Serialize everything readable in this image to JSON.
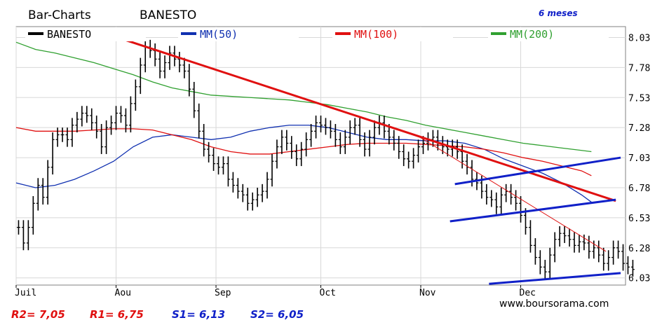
{
  "header": {
    "chart_title": "Bar-Charts",
    "symbol": "BANESTO",
    "period": "6 meses",
    "credit": "www.boursorama.com"
  },
  "levels": [
    {
      "label": "R2= 7,05",
      "color": "#e01010"
    },
    {
      "label": "R1= 6,75",
      "color": "#e01010"
    },
    {
      "label": "S1= 6,13",
      "color": "#1020c8"
    },
    {
      "label": "S2= 6,05",
      "color": "#1020c8"
    }
  ],
  "chart_data": {
    "type": "bar",
    "style": "ohlc-bar-chart",
    "title": "Bar-Charts BANESTO",
    "ylim": [
      5.97,
      8.12
    ],
    "y_ticks": [
      "8.03",
      "7.78",
      "7.53",
      "7.28",
      "7.03",
      "6.78",
      "6.53",
      "6.28",
      "6.03"
    ],
    "y_tick_values": [
      8.03,
      7.78,
      7.53,
      7.28,
      7.03,
      6.78,
      6.53,
      6.28,
      6.03
    ],
    "x_ticks": [
      "Juil",
      "Aou",
      "Sep",
      "Oct",
      "Nov",
      "Dec"
    ],
    "grid": true,
    "legend": "top",
    "series": [
      {
        "name": "BANESTO",
        "color": "#000000",
        "kind": "price-bars",
        "values": [
          6.45,
          6.32,
          6.45,
          6.65,
          6.8,
          6.7,
          6.95,
          7.18,
          7.22,
          7.22,
          7.18,
          7.3,
          7.35,
          7.4,
          7.38,
          7.32,
          7.25,
          7.12,
          7.28,
          7.32,
          7.4,
          7.38,
          7.3,
          7.48,
          7.62,
          7.8,
          7.95,
          7.92,
          7.85,
          7.75,
          7.82,
          7.9,
          7.85,
          7.8,
          7.75,
          7.6,
          7.42,
          7.25,
          7.1,
          7.05,
          6.98,
          6.95,
          6.98,
          6.85,
          6.8,
          6.75,
          6.72,
          6.65,
          6.68,
          6.72,
          6.75,
          6.85,
          7.0,
          7.12,
          7.2,
          7.15,
          7.08,
          7.02,
          7.1,
          7.18,
          7.25,
          7.32,
          7.3,
          7.28,
          7.25,
          7.18,
          7.12,
          7.2,
          7.28,
          7.3,
          7.18,
          7.1,
          7.2,
          7.28,
          7.32,
          7.25,
          7.2,
          7.15,
          7.08,
          7.02,
          7.0,
          7.05,
          7.12,
          7.15,
          7.18,
          7.2,
          7.15,
          7.12,
          7.1,
          7.12,
          7.08,
          7.0,
          6.95,
          6.85,
          6.82,
          6.75,
          6.7,
          6.68,
          6.62,
          6.72,
          6.75,
          6.7,
          6.65,
          6.55,
          6.45,
          6.3,
          6.2,
          6.12,
          6.08,
          6.22,
          6.35,
          6.4,
          6.38,
          6.35,
          6.3,
          6.33,
          6.32,
          6.25,
          6.28,
          6.22,
          6.15,
          6.2,
          6.28,
          6.25,
          6.15,
          6.12,
          6.1
        ]
      },
      {
        "name": "MM(50)",
        "color": "#1030b0",
        "x": [
          0,
          4,
          8,
          12,
          16,
          20,
          24,
          28,
          32,
          36,
          40,
          44,
          48,
          52,
          56,
          60,
          64,
          68,
          72,
          76,
          80,
          84,
          88,
          92,
          96,
          100,
          104,
          108,
          112,
          116,
          118
        ],
        "values": [
          6.82,
          6.78,
          6.8,
          6.85,
          6.92,
          7.0,
          7.12,
          7.2,
          7.22,
          7.2,
          7.18,
          7.2,
          7.25,
          7.28,
          7.3,
          7.3,
          7.28,
          7.24,
          7.2,
          7.18,
          7.18,
          7.17,
          7.17,
          7.15,
          7.1,
          7.02,
          6.96,
          6.9,
          6.82,
          6.72,
          6.66
        ]
      },
      {
        "name": "MM(100)",
        "color": "#e01010",
        "x": [
          0,
          4,
          8,
          12,
          16,
          20,
          24,
          28,
          32,
          36,
          40,
          44,
          48,
          52,
          56,
          60,
          64,
          68,
          72,
          76,
          80,
          84,
          88,
          92,
          96,
          100,
          104,
          108,
          112,
          116,
          118
        ],
        "values": [
          7.28,
          7.25,
          7.25,
          7.25,
          7.26,
          7.27,
          7.27,
          7.26,
          7.22,
          7.18,
          7.12,
          7.08,
          7.06,
          7.06,
          7.08,
          7.1,
          7.12,
          7.14,
          7.15,
          7.15,
          7.15,
          7.14,
          7.13,
          7.12,
          7.1,
          7.07,
          7.03,
          7.0,
          6.96,
          6.92,
          6.88
        ]
      },
      {
        "name": "MM(200)",
        "color": "#30a030",
        "x": [
          0,
          4,
          8,
          12,
          16,
          20,
          24,
          28,
          32,
          36,
          40,
          44,
          48,
          52,
          56,
          60,
          64,
          68,
          72,
          76,
          80,
          84,
          88,
          92,
          96,
          100,
          104,
          108,
          112,
          116,
          118
        ],
        "values": [
          7.99,
          7.93,
          7.9,
          7.86,
          7.82,
          7.77,
          7.72,
          7.66,
          7.61,
          7.58,
          7.55,
          7.54,
          7.53,
          7.52,
          7.51,
          7.49,
          7.47,
          7.44,
          7.41,
          7.37,
          7.34,
          7.3,
          7.27,
          7.24,
          7.21,
          7.18,
          7.15,
          7.13,
          7.11,
          7.09,
          7.08
        ]
      }
    ],
    "trendlines": [
      {
        "name": "resistance-main",
        "color": "#e01010",
        "width": 3,
        "from": [
          20,
          8.04
        ],
        "to": [
          123,
          6.67
        ]
      },
      {
        "name": "resistance-secondary",
        "color": "#e01010",
        "width": 1,
        "from": [
          82,
          7.22
        ],
        "to": [
          121,
          6.25
        ]
      },
      {
        "name": "channel-upper",
        "color": "#1020c8",
        "width": 3,
        "from": [
          90,
          6.81
        ],
        "to": [
          124,
          7.03
        ]
      },
      {
        "name": "channel-middle",
        "color": "#1020c8",
        "width": 3,
        "from": [
          89,
          6.5
        ],
        "to": [
          123,
          6.68
        ]
      },
      {
        "name": "channel-lower",
        "color": "#1020c8",
        "width": 3,
        "from": [
          97,
          5.98
        ],
        "to": [
          124,
          6.07
        ]
      }
    ]
  }
}
